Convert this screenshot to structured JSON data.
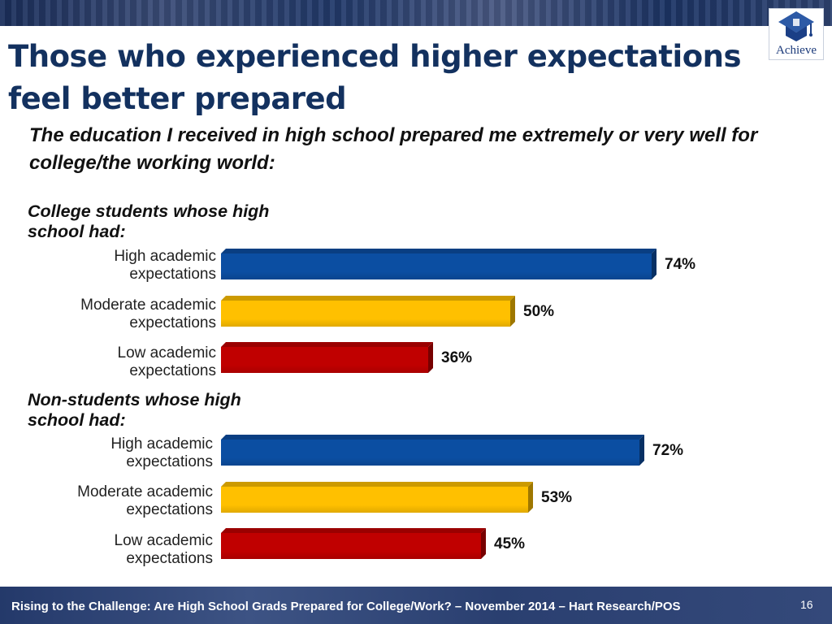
{
  "slide": {
    "title": "Those who experienced higher expectations feel better prepared",
    "logo_text": "Achieve",
    "footer": "Rising to the Challenge:  Are High School Grads Prepared for College/Work? – November 2014 – Hart Research/POS",
    "page_number": "16"
  },
  "chart_data": {
    "type": "bar",
    "orientation": "horizontal",
    "title": "The education I received in high school prepared me extremely or very well for college/the working world:",
    "value_format": "percent",
    "xlim": [
      0,
      100
    ],
    "grid": false,
    "legend": "none",
    "groups": [
      {
        "name": "College students whose high school had:",
        "categories": [
          {
            "line1": "High academic",
            "line2": "expectations"
          },
          {
            "line1": "Moderate academic",
            "line2": "expectations"
          },
          {
            "line1": "Low academic",
            "line2": "expectations"
          }
        ],
        "values": [
          74,
          50,
          36
        ],
        "value_labels": [
          "74%",
          "50%",
          "36%"
        ],
        "colors": [
          "#0b4ea2",
          "#ffc000",
          "#c00000"
        ]
      },
      {
        "name": "Non-students whose high school had:",
        "categories": [
          {
            "line1": "High academic",
            "line2": "expectations"
          },
          {
            "line1": "Moderate academic",
            "line2": "expectations"
          },
          {
            "line1": "Low academic",
            "line2": "expectations"
          }
        ],
        "values": [
          72,
          53,
          45
        ],
        "value_labels": [
          "72%",
          "53%",
          "45%"
        ],
        "colors": [
          "#0b4ea2",
          "#ffc000",
          "#c00000"
        ]
      }
    ]
  }
}
